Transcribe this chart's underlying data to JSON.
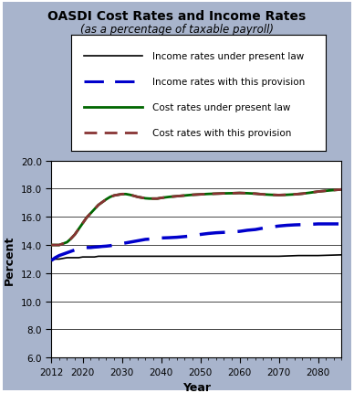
{
  "title": "OASDI Cost Rates and Income Rates",
  "subtitle": "(as a percentage of taxable payroll)",
  "xlabel": "Year",
  "ylabel": "Percent",
  "ylim": [
    6.0,
    20.0
  ],
  "xlim": [
    2012,
    2086
  ],
  "yticks": [
    6.0,
    8.0,
    10.0,
    12.0,
    14.0,
    16.0,
    18.0,
    20.0
  ],
  "xticks": [
    2012,
    2020,
    2030,
    2040,
    2050,
    2060,
    2070,
    2080
  ],
  "background_color": "#a8b4cc",
  "plot_bg_color": "#ffffff",
  "border_color": "#6b0a2a",
  "legend_labels": [
    "Income rates under present law",
    "Income rates with this provision",
    "Cost rates under present law",
    "Cost rates with this provision"
  ],
  "income_present_law_x": [
    2012,
    2013,
    2014,
    2015,
    2016,
    2017,
    2018,
    2019,
    2020,
    2021,
    2022,
    2023,
    2024,
    2025,
    2026,
    2027,
    2028,
    2029,
    2030,
    2031,
    2032,
    2033,
    2034,
    2035,
    2036,
    2037,
    2038,
    2039,
    2040,
    2041,
    2042,
    2043,
    2044,
    2045,
    2046,
    2047,
    2048,
    2049,
    2050,
    2055,
    2060,
    2065,
    2070,
    2075,
    2080,
    2086
  ],
  "income_present_law_y": [
    12.9,
    13.0,
    13.0,
    13.05,
    13.1,
    13.1,
    13.1,
    13.1,
    13.15,
    13.15,
    13.15,
    13.15,
    13.2,
    13.2,
    13.2,
    13.2,
    13.2,
    13.2,
    13.2,
    13.2,
    13.2,
    13.2,
    13.2,
    13.2,
    13.2,
    13.2,
    13.2,
    13.2,
    13.2,
    13.2,
    13.2,
    13.2,
    13.2,
    13.2,
    13.2,
    13.2,
    13.2,
    13.2,
    13.2,
    13.2,
    13.2,
    13.2,
    13.2,
    13.25,
    13.25,
    13.3
  ],
  "income_provision_x": [
    2012,
    2013,
    2014,
    2015,
    2016,
    2017,
    2018,
    2019,
    2020,
    2021,
    2022,
    2023,
    2024,
    2025,
    2026,
    2027,
    2028,
    2029,
    2030,
    2031,
    2032,
    2033,
    2034,
    2035,
    2036,
    2037,
    2038,
    2039,
    2040,
    2042,
    2044,
    2046,
    2048,
    2050,
    2052,
    2054,
    2056,
    2058,
    2060,
    2062,
    2064,
    2066,
    2068,
    2070,
    2072,
    2074,
    2076,
    2078,
    2080,
    2083,
    2086
  ],
  "income_provision_y": [
    12.9,
    13.1,
    13.25,
    13.35,
    13.45,
    13.55,
    13.65,
    13.75,
    13.82,
    13.82,
    13.82,
    13.85,
    13.87,
    13.9,
    13.92,
    13.95,
    14.0,
    14.05,
    14.1,
    14.15,
    14.2,
    14.25,
    14.3,
    14.35,
    14.4,
    14.42,
    14.45,
    14.47,
    14.5,
    14.52,
    14.55,
    14.6,
    14.65,
    14.75,
    14.82,
    14.87,
    14.9,
    14.92,
    14.97,
    15.05,
    15.1,
    15.2,
    15.28,
    15.35,
    15.4,
    15.43,
    15.45,
    15.47,
    15.5,
    15.5,
    15.5
  ],
  "cost_present_law_x": [
    2012,
    2013,
    2014,
    2015,
    2016,
    2017,
    2018,
    2019,
    2020,
    2021,
    2022,
    2023,
    2024,
    2025,
    2026,
    2027,
    2028,
    2029,
    2030,
    2031,
    2032,
    2033,
    2034,
    2035,
    2036,
    2037,
    2038,
    2039,
    2040,
    2042,
    2044,
    2046,
    2048,
    2050,
    2052,
    2054,
    2056,
    2058,
    2060,
    2062,
    2064,
    2066,
    2068,
    2070,
    2072,
    2074,
    2076,
    2078,
    2080,
    2083,
    2086
  ],
  "cost_present_law_y": [
    14.0,
    14.0,
    14.0,
    14.1,
    14.2,
    14.45,
    14.75,
    15.15,
    15.55,
    15.95,
    16.25,
    16.55,
    16.85,
    17.05,
    17.25,
    17.42,
    17.52,
    17.57,
    17.62,
    17.62,
    17.57,
    17.5,
    17.42,
    17.37,
    17.32,
    17.3,
    17.3,
    17.3,
    17.35,
    17.42,
    17.47,
    17.52,
    17.57,
    17.6,
    17.63,
    17.65,
    17.67,
    17.68,
    17.7,
    17.68,
    17.65,
    17.6,
    17.57,
    17.55,
    17.57,
    17.6,
    17.65,
    17.72,
    17.8,
    17.88,
    17.95
  ],
  "cost_provision_x": [
    2012,
    2013,
    2014,
    2015,
    2016,
    2017,
    2018,
    2019,
    2020,
    2021,
    2022,
    2023,
    2024,
    2025,
    2026,
    2027,
    2028,
    2029,
    2030,
    2031,
    2032,
    2033,
    2034,
    2035,
    2036,
    2037,
    2038,
    2039,
    2040,
    2042,
    2044,
    2046,
    2048,
    2050,
    2052,
    2054,
    2056,
    2058,
    2060,
    2062,
    2064,
    2066,
    2068,
    2070,
    2072,
    2074,
    2076,
    2078,
    2080,
    2083,
    2086
  ],
  "cost_provision_y": [
    14.0,
    14.0,
    14.0,
    14.1,
    14.2,
    14.45,
    14.75,
    15.15,
    15.55,
    15.95,
    16.25,
    16.55,
    16.85,
    17.05,
    17.25,
    17.42,
    17.52,
    17.57,
    17.62,
    17.62,
    17.57,
    17.5,
    17.42,
    17.37,
    17.32,
    17.3,
    17.3,
    17.3,
    17.35,
    17.42,
    17.47,
    17.52,
    17.57,
    17.6,
    17.63,
    17.65,
    17.67,
    17.68,
    17.7,
    17.68,
    17.65,
    17.6,
    17.57,
    17.55,
    17.57,
    17.6,
    17.65,
    17.72,
    17.8,
    17.88,
    17.95
  ]
}
